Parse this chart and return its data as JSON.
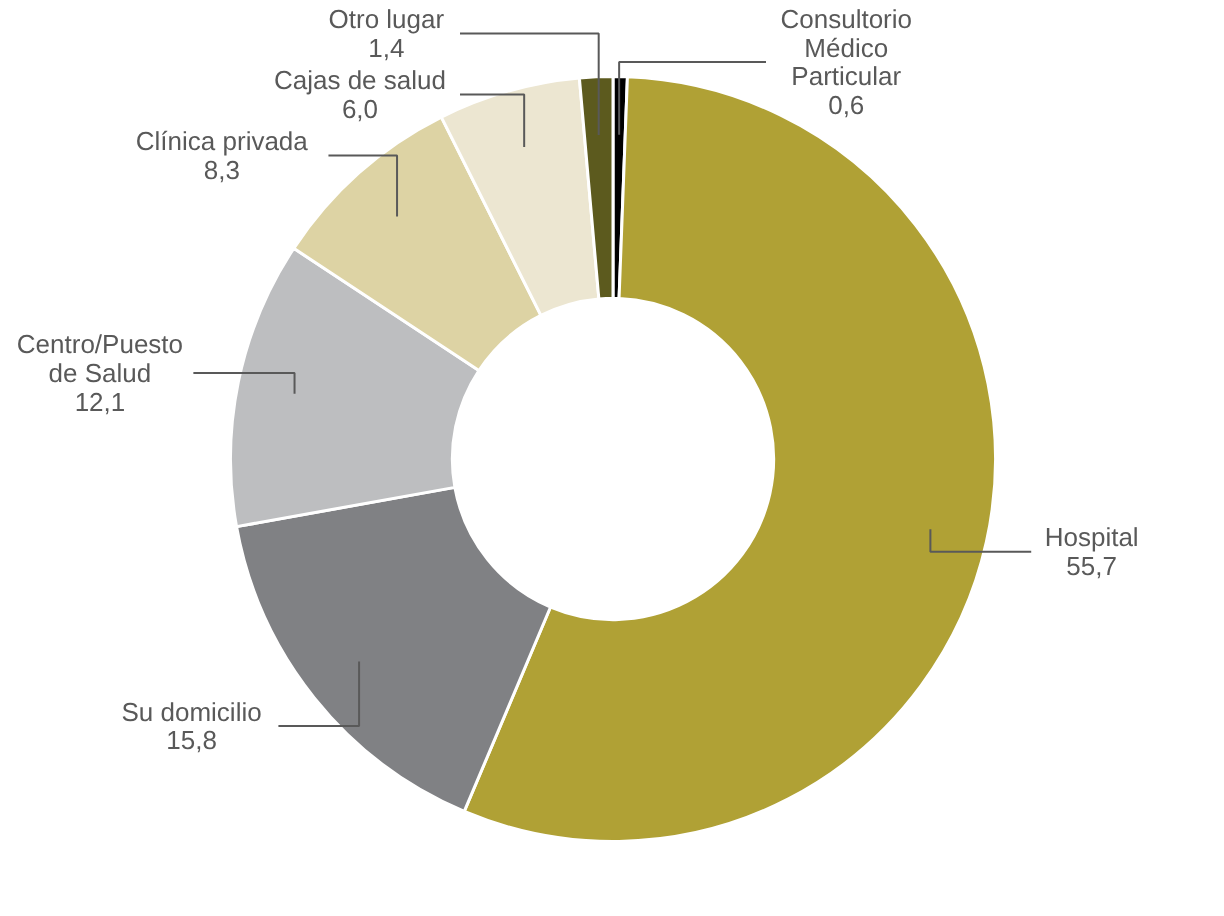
{
  "chart_data": {
    "type": "donut",
    "categories": [
      "Consultorio Médico Particular",
      "Hospital",
      "Su domicilio",
      "Centro/Puesto de Salud",
      "Clínica privada",
      "Cajas de salud",
      "Otro lugar"
    ],
    "values": [
      0.6,
      55.7,
      15.8,
      12.1,
      8.3,
      6.0,
      1.4
    ],
    "value_labels": [
      "0,6",
      "55,7",
      "15,8",
      "12,1",
      "8,3",
      "6,0",
      "1,4"
    ],
    "colors": [
      "#000000",
      "#b0a135",
      "#808184",
      "#bdbec0",
      "#ddd3a4",
      "#ece6d1",
      "#5c5a1e"
    ]
  }
}
